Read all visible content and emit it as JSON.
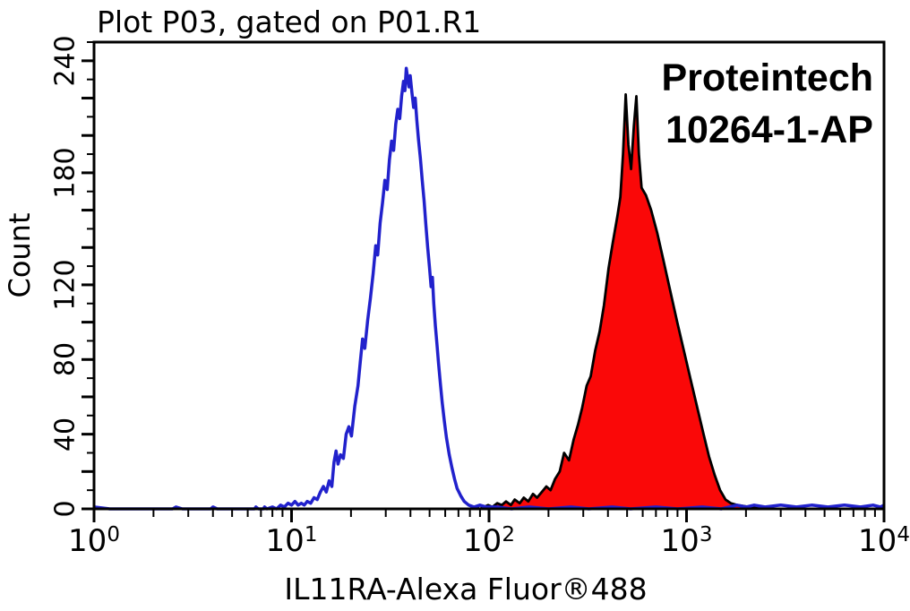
{
  "chart_data": {
    "type": "area",
    "title": "Plot P03, gated on P01.R1",
    "xlabel": "IL11RA-Alexa Fluor®488",
    "ylabel": "Count",
    "annotation": {
      "line1": "Proteintech",
      "line2": "10264-1-AP"
    },
    "grid": false,
    "legend": "none",
    "x_axis": {
      "scale": "log10",
      "range": [
        1,
        10000
      ],
      "tick_base": "10",
      "tick_exponents": [
        0,
        1,
        2,
        3,
        4
      ]
    },
    "y_axis": {
      "scale": "linear",
      "range": [
        0,
        250
      ],
      "minor_step": 10,
      "major_step": 20,
      "tick_labels": [
        {
          "value": 0,
          "label": "0"
        },
        {
          "value": 40,
          "label": "40"
        },
        {
          "value": 80,
          "label": "80"
        },
        {
          "value": 120,
          "label": "120"
        },
        {
          "value": 180,
          "label": "180"
        },
        {
          "value": 240,
          "label": "240"
        }
      ]
    },
    "series": [
      {
        "name": "red filled histogram",
        "style": "filled",
        "stroke": "#000000",
        "fill": "#fa0808",
        "stroke_width": 2.8,
        "points": [
          [
            80,
            0
          ],
          [
            85,
            1
          ],
          [
            90,
            0
          ],
          [
            99,
            2
          ],
          [
            104,
            1
          ],
          [
            110,
            3
          ],
          [
            116,
            2
          ],
          [
            122,
            4
          ],
          [
            129,
            2
          ],
          [
            135,
            5
          ],
          [
            143,
            3
          ],
          [
            150,
            6
          ],
          [
            158,
            4
          ],
          [
            167,
            8
          ],
          [
            175,
            6
          ],
          [
            185,
            9
          ],
          [
            195,
            12
          ],
          [
            205,
            10
          ],
          [
            216,
            16
          ],
          [
            228,
            20
          ],
          [
            240,
            30
          ],
          [
            254,
            26
          ],
          [
            268,
            37
          ],
          [
            282,
            45
          ],
          [
            296,
            54
          ],
          [
            312,
            66
          ],
          [
            327,
            71
          ],
          [
            345,
            85
          ],
          [
            363,
            95
          ],
          [
            382,
            109
          ],
          [
            403,
            129
          ],
          [
            424,
            143
          ],
          [
            447,
            157
          ],
          [
            462,
            167
          ],
          [
            477,
            190
          ],
          [
            492,
            222
          ],
          [
            508,
            195
          ],
          [
            524,
            182
          ],
          [
            541,
            205
          ],
          [
            557,
            221
          ],
          [
            574,
            190
          ],
          [
            592,
            172
          ],
          [
            623,
            168
          ],
          [
            662,
            160
          ],
          [
            710,
            148
          ],
          [
            761,
            134
          ],
          [
            826,
            117
          ],
          [
            897,
            100
          ],
          [
            973,
            84
          ],
          [
            1056,
            68
          ],
          [
            1135,
            54
          ],
          [
            1220,
            40
          ],
          [
            1300,
            28
          ],
          [
            1390,
            18
          ],
          [
            1480,
            10
          ],
          [
            1575,
            5
          ],
          [
            1675,
            3
          ],
          [
            1815,
            2
          ],
          [
            2080,
            1
          ],
          [
            2560,
            0
          ],
          [
            3000,
            0
          ]
        ]
      },
      {
        "name": "blue outline histogram",
        "style": "line",
        "stroke": "#2121cc",
        "fill": "none",
        "stroke_width": 3.5,
        "points": [
          [
            1,
            1
          ],
          [
            1.2,
            0
          ],
          [
            2.5,
            0
          ],
          [
            2.6,
            1
          ],
          [
            2.8,
            0
          ],
          [
            3.9,
            0
          ],
          [
            4,
            1
          ],
          [
            4.2,
            0
          ],
          [
            6.5,
            0
          ],
          [
            6.6,
            1
          ],
          [
            6.8,
            0
          ],
          [
            7.2,
            0
          ],
          [
            7.3,
            1
          ],
          [
            7.5,
            0
          ],
          [
            8,
            1
          ],
          [
            8.4,
            0
          ],
          [
            8.8,
            2
          ],
          [
            9.2,
            1
          ],
          [
            9.6,
            3
          ],
          [
            10,
            2
          ],
          [
            10.4,
            4
          ],
          [
            10.8,
            2
          ],
          [
            11.2,
            3
          ],
          [
            11.6,
            2
          ],
          [
            12,
            4
          ],
          [
            12.5,
            3
          ],
          [
            13,
            6
          ],
          [
            13.5,
            5
          ],
          [
            14,
            9
          ],
          [
            14.5,
            12
          ],
          [
            15,
            9
          ],
          [
            15.5,
            15
          ],
          [
            16,
            12
          ],
          [
            16.4,
            25
          ],
          [
            16.8,
            31
          ],
          [
            17.2,
            24
          ],
          [
            17.7,
            29
          ],
          [
            18.3,
            27
          ],
          [
            18.9,
            40
          ],
          [
            19.5,
            44
          ],
          [
            20.1,
            39
          ],
          [
            20.9,
            55
          ],
          [
            21.7,
            66
          ],
          [
            22.3,
            79
          ],
          [
            22.9,
            91
          ],
          [
            23.5,
            86
          ],
          [
            24.3,
            101
          ],
          [
            25.1,
            113
          ],
          [
            25.9,
            126
          ],
          [
            26.7,
            141
          ],
          [
            27.3,
            136
          ],
          [
            28.1,
            153
          ],
          [
            28.9,
            164
          ],
          [
            29.7,
            176
          ],
          [
            30.5,
            171
          ],
          [
            31.3,
            187
          ],
          [
            32.1,
            197
          ],
          [
            32.9,
            192
          ],
          [
            33.7,
            206
          ],
          [
            34.5,
            214
          ],
          [
            35.3,
            209
          ],
          [
            36.1,
            221
          ],
          [
            36.9,
            229
          ],
          [
            37.5,
            224
          ],
          [
            38.1,
            236
          ],
          [
            38.7,
            231
          ],
          [
            39.3,
            226
          ],
          [
            39.9,
            232
          ],
          [
            40.7,
            223
          ],
          [
            41.5,
            215
          ],
          [
            42.3,
            220
          ],
          [
            43.1,
            208
          ],
          [
            43.9,
            198
          ],
          [
            44.9,
            188
          ],
          [
            45.9,
            176
          ],
          [
            46.9,
            165
          ],
          [
            47.9,
            152
          ],
          [
            48.9,
            140
          ],
          [
            49.9,
            130
          ],
          [
            50.9,
            119
          ],
          [
            51.7,
            124
          ],
          [
            52.5,
            110
          ],
          [
            53.5,
            98
          ],
          [
            54.5,
            88
          ],
          [
            55.5,
            78
          ],
          [
            56.7,
            67
          ],
          [
            57.9,
            57
          ],
          [
            59.4,
            47
          ],
          [
            60.9,
            38
          ],
          [
            62.9,
            29
          ],
          [
            64.9,
            22
          ],
          [
            66.9,
            16
          ],
          [
            68.9,
            11
          ],
          [
            71.9,
            7
          ],
          [
            74.9,
            4
          ],
          [
            78.9,
            2
          ],
          [
            83.9,
            1
          ],
          [
            89.9,
            2
          ],
          [
            96.9,
            1
          ],
          [
            110,
            1
          ],
          [
            130,
            0
          ],
          [
            160,
            1
          ],
          [
            200,
            0
          ],
          [
            260,
            1
          ],
          [
            320,
            0
          ],
          [
            420,
            1
          ],
          [
            520,
            0
          ],
          [
            700,
            1
          ],
          [
            900,
            0
          ],
          [
            1200,
            1
          ],
          [
            1500,
            0
          ],
          [
            1800,
            2
          ],
          [
            2000,
            1
          ],
          [
            2200,
            2
          ],
          [
            2500,
            1
          ],
          [
            3000,
            2
          ],
          [
            3600,
            1
          ],
          [
            4300,
            2
          ],
          [
            5200,
            1
          ],
          [
            6300,
            2
          ],
          [
            7600,
            1
          ],
          [
            8800,
            2
          ],
          [
            9600,
            1
          ],
          [
            10000,
            2
          ]
        ]
      }
    ]
  }
}
